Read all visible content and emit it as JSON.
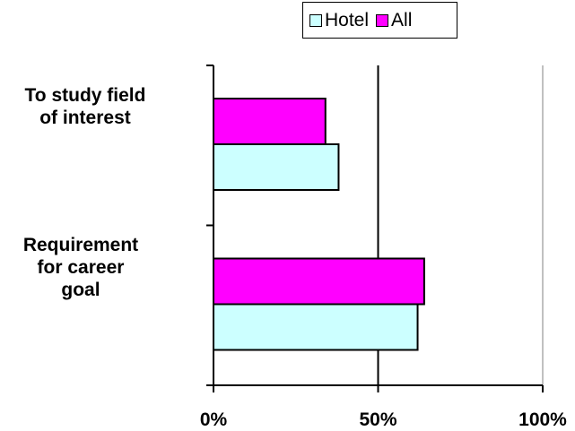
{
  "chart_data": {
    "type": "bar",
    "orientation": "horizontal",
    "categories": [
      "To study field of interest",
      "Requirement for career goal"
    ],
    "category_lines": [
      [
        "To study field",
        "of interest"
      ],
      [
        "Requirement",
        "for career",
        "goal"
      ]
    ],
    "series": [
      {
        "name": "Hotel",
        "color": "#ccffff",
        "values": [
          38,
          62
        ]
      },
      {
        "name": "All",
        "color": "#ff00ff",
        "values": [
          34,
          64
        ]
      }
    ],
    "xlim": [
      0,
      100
    ],
    "x_ticks": [
      "0%",
      "50%",
      "100%"
    ],
    "gridlines": [
      50,
      100
    ],
    "gridline_colors": [
      "#000000",
      "#c0c0c0"
    ],
    "legend_position": "top"
  }
}
